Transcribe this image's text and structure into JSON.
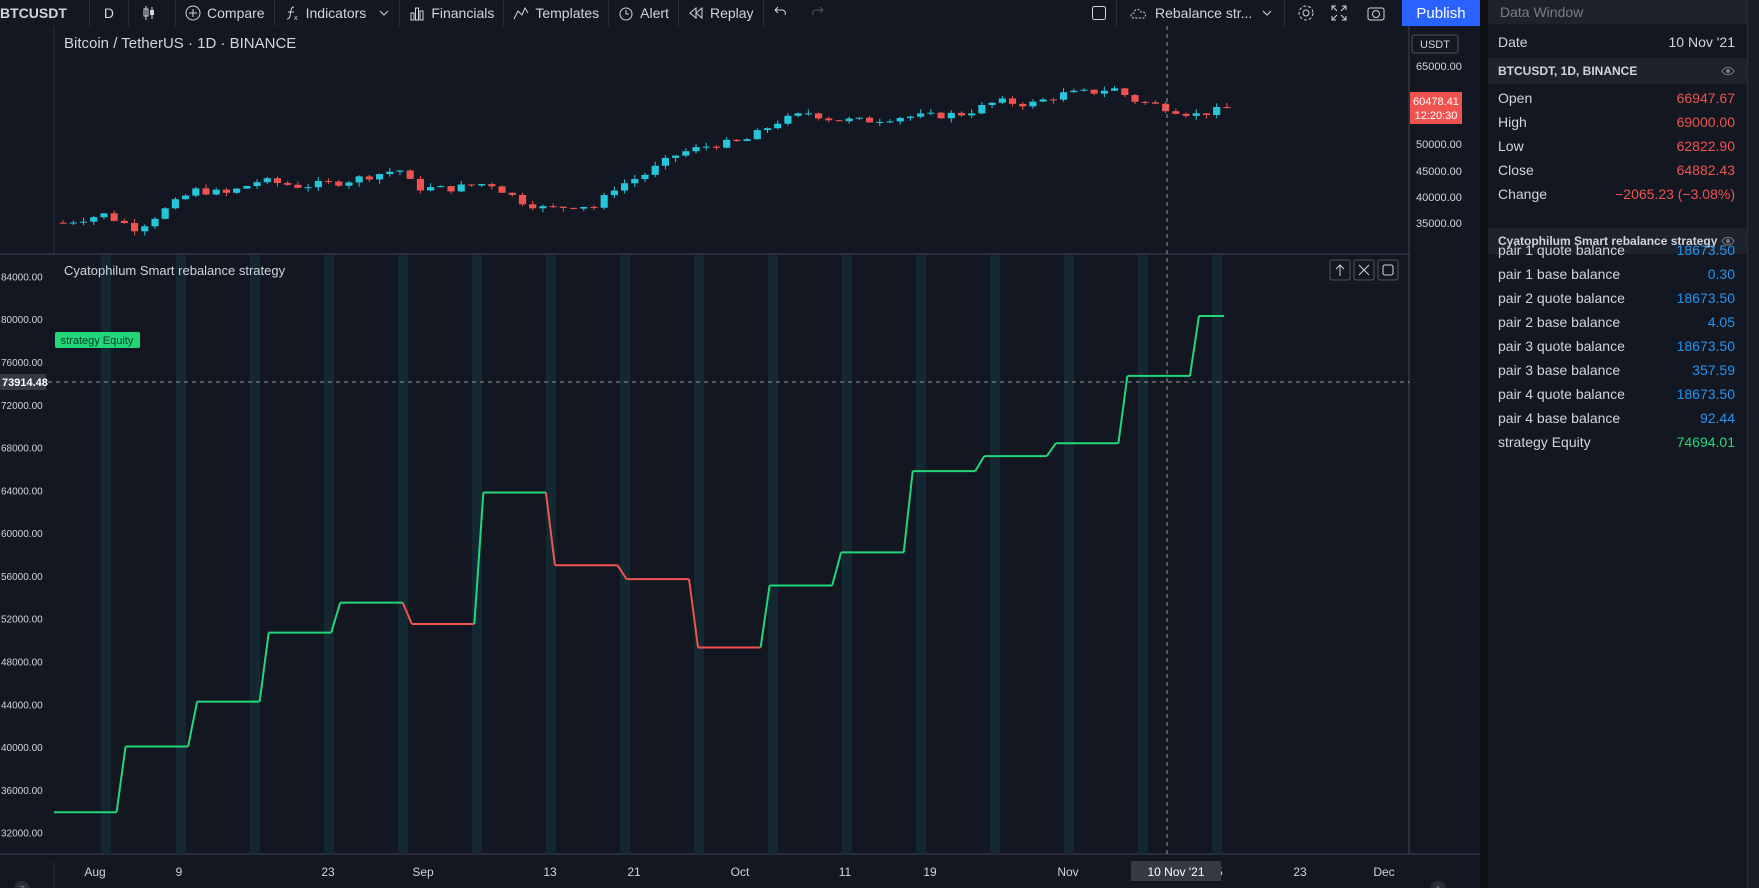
{
  "toolbar": {
    "symbol": "BTCUSDT",
    "interval": "D",
    "compare": "Compare",
    "indicators": "Indicators",
    "financials": "Financials",
    "templates": "Templates",
    "alert": "Alert",
    "replay": "Replay",
    "layout_name": "Rebalance str...",
    "publish": "Publish"
  },
  "main_pane": {
    "title": "Bitcoin / TetherUS · 1D · BINANCE",
    "currency": "USDT",
    "price_ticks": [
      "65000.00",
      "55000.00",
      "50000.00",
      "45000.00",
      "40000.00",
      "35000.00"
    ],
    "last_price": "60478.41",
    "countdown": "12:20:30"
  },
  "indicator_pane": {
    "title": "Cyatophilum Smart rebalance strategy",
    "equity_label": "strategy Equity",
    "y_ticks": [
      "84000.00",
      "80000.00",
      "76000.00",
      "72000.00",
      "68000.00",
      "64000.00",
      "60000.00",
      "56000.00",
      "52000.00",
      "48000.00",
      "44000.00",
      "40000.00",
      "36000.00",
      "32000.00"
    ],
    "crosshair_value": "73914.48"
  },
  "time_axis": {
    "labels": [
      "Aug",
      "9",
      "23",
      "Sep",
      "13",
      "21",
      "Oct",
      "11",
      "19",
      "Nov",
      "15",
      "23",
      "Dec"
    ],
    "crosshair_date": "10 Nov '21",
    "left_button": "Z",
    "right_button": "A"
  },
  "chart_data": {
    "type": "line",
    "title": "Cyatophilum Smart rebalance strategy",
    "series": [
      {
        "name": "strategy Equity",
        "step_levels": [
          33900,
          40050,
          44250,
          50700,
          53500,
          51500,
          63800,
          57000,
          55700,
          49300,
          55100,
          58200,
          65800,
          67200,
          68400,
          74694,
          80300
        ]
      }
    ],
    "ylim": [
      30000,
      86000
    ],
    "price_range": [
      35000,
      69000
    ],
    "xlabel": "",
    "ylabel": ""
  },
  "data_window": {
    "header": "Data Window",
    "date_label": "Date",
    "date_value": "10 Nov '21",
    "symbol_section": "BTCUSDT, 1D, BINANCE",
    "ohlc": [
      {
        "label": "Open",
        "value": "66947.67"
      },
      {
        "label": "High",
        "value": "69000.00"
      },
      {
        "label": "Low",
        "value": "62822.90"
      },
      {
        "label": "Close",
        "value": "64882.43"
      },
      {
        "label": "Change",
        "value": "−2065.23 (−3.08%)"
      }
    ],
    "strategy_section": "Cyatophilum Smart rebalance strategy",
    "strategy_values": [
      {
        "label": "pair 1 quote balance",
        "value": "18673.50"
      },
      {
        "label": "pair 1 base balance",
        "value": "0.30"
      },
      {
        "label": "pair 2 quote balance",
        "value": "18673.50"
      },
      {
        "label": "pair 2 base balance",
        "value": "4.05"
      },
      {
        "label": "pair 3 quote balance",
        "value": "18673.50"
      },
      {
        "label": "pair 3 base balance",
        "value": "357.59"
      },
      {
        "label": "pair 4 quote balance",
        "value": "18673.50"
      },
      {
        "label": "pair 4 base balance",
        "value": "92.44"
      },
      {
        "label": "strategy Equity",
        "value": "74694.01"
      }
    ]
  },
  "colors": {
    "up": "#26c6da",
    "down": "#ef5350",
    "equity_up": "#22d67a",
    "equity_down": "#ef5350",
    "accent": "#2962ff"
  }
}
